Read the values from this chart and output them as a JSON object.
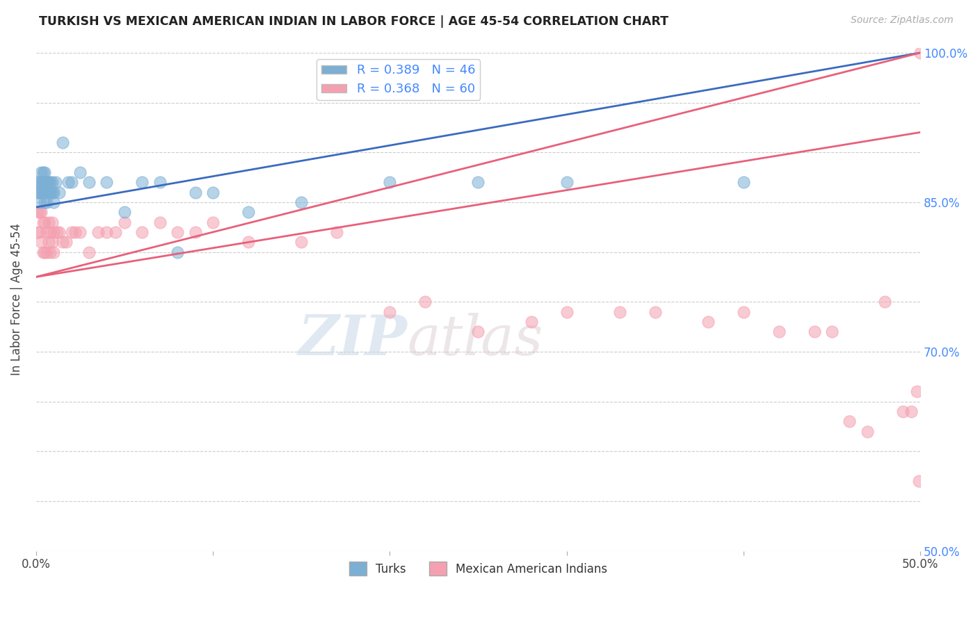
{
  "title": "TURKISH VS MEXICAN AMERICAN INDIAN IN LABOR FORCE | AGE 45-54 CORRELATION CHART",
  "source": "Source: ZipAtlas.com",
  "ylabel_text": "In Labor Force | Age 45-54",
  "x_min": 0.0,
  "x_max": 0.5,
  "y_min": 0.5,
  "y_max": 1.005,
  "turkish_color": "#7bafd4",
  "mexican_color": "#f4a0b0",
  "turkish_line_color": "#3a6bbf",
  "mexican_line_color": "#e8607a",
  "turkish_R": 0.389,
  "turkish_N": 46,
  "mexican_R": 0.368,
  "mexican_N": 60,
  "watermark_zip": "ZIP",
  "watermark_atlas": "atlas",
  "turkish_x": [
    0.001,
    0.001,
    0.002,
    0.002,
    0.002,
    0.003,
    0.003,
    0.003,
    0.004,
    0.004,
    0.004,
    0.005,
    0.005,
    0.005,
    0.005,
    0.006,
    0.006,
    0.006,
    0.007,
    0.007,
    0.008,
    0.008,
    0.009,
    0.009,
    0.01,
    0.01,
    0.011,
    0.013,
    0.015,
    0.018,
    0.02,
    0.025,
    0.03,
    0.04,
    0.05,
    0.06,
    0.07,
    0.08,
    0.09,
    0.1,
    0.12,
    0.15,
    0.2,
    0.25,
    0.3,
    0.4
  ],
  "turkish_y": [
    0.87,
    0.86,
    0.87,
    0.86,
    0.85,
    0.88,
    0.87,
    0.86,
    0.88,
    0.87,
    0.86,
    0.88,
    0.87,
    0.86,
    0.85,
    0.87,
    0.86,
    0.85,
    0.87,
    0.86,
    0.87,
    0.86,
    0.87,
    0.86,
    0.86,
    0.85,
    0.87,
    0.86,
    0.91,
    0.87,
    0.87,
    0.88,
    0.87,
    0.87,
    0.84,
    0.87,
    0.87,
    0.8,
    0.86,
    0.86,
    0.84,
    0.85,
    0.87,
    0.87,
    0.87,
    0.87
  ],
  "mexican_x": [
    0.001,
    0.001,
    0.002,
    0.002,
    0.003,
    0.003,
    0.004,
    0.004,
    0.005,
    0.005,
    0.006,
    0.006,
    0.007,
    0.007,
    0.008,
    0.008,
    0.009,
    0.009,
    0.01,
    0.01,
    0.012,
    0.013,
    0.015,
    0.017,
    0.02,
    0.022,
    0.025,
    0.03,
    0.035,
    0.04,
    0.045,
    0.05,
    0.06,
    0.07,
    0.08,
    0.09,
    0.1,
    0.12,
    0.15,
    0.17,
    0.2,
    0.22,
    0.25,
    0.28,
    0.3,
    0.33,
    0.35,
    0.38,
    0.4,
    0.42,
    0.44,
    0.45,
    0.46,
    0.47,
    0.48,
    0.49,
    0.495,
    0.498,
    0.499,
    0.5
  ],
  "mexican_y": [
    0.84,
    0.82,
    0.84,
    0.82,
    0.84,
    0.81,
    0.83,
    0.8,
    0.83,
    0.8,
    0.82,
    0.8,
    0.83,
    0.81,
    0.82,
    0.8,
    0.83,
    0.81,
    0.82,
    0.8,
    0.82,
    0.82,
    0.81,
    0.81,
    0.82,
    0.82,
    0.82,
    0.8,
    0.82,
    0.82,
    0.82,
    0.83,
    0.82,
    0.83,
    0.82,
    0.82,
    0.83,
    0.81,
    0.81,
    0.82,
    0.74,
    0.75,
    0.72,
    0.73,
    0.74,
    0.74,
    0.74,
    0.73,
    0.74,
    0.72,
    0.72,
    0.72,
    0.63,
    0.62,
    0.75,
    0.64,
    0.64,
    0.66,
    0.57,
    1.0
  ]
}
